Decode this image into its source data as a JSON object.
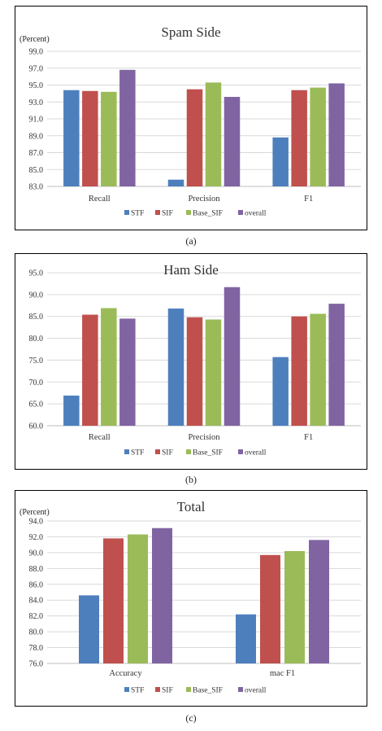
{
  "colors": {
    "series": [
      "#4e7fbd",
      "#c0504d",
      "#9bbb59",
      "#8064a2"
    ],
    "grid": "#d9d9d9",
    "axis": "#bfbfbf",
    "frame": "#000000"
  },
  "captions": [
    "(a)",
    "(b)",
    "(c)"
  ],
  "chart_data": [
    {
      "type": "bar",
      "title": "Spam Side",
      "ylabel": "(Percent)",
      "categories": [
        "Recall",
        "Precision",
        "F1"
      ],
      "ylim": [
        83.0,
        99.0
      ],
      "yticks": [
        "99.0",
        "97.0",
        "95.0",
        "93.0",
        "91.0",
        "89.0",
        "87.0",
        "85.0",
        "83.0"
      ],
      "grid": true,
      "legend_position": "bottom",
      "series": [
        {
          "name": "STF",
          "values": [
            94.4,
            83.8,
            88.8
          ]
        },
        {
          "name": "SIF",
          "values": [
            94.3,
            94.5,
            94.4
          ]
        },
        {
          "name": "Base_SIF",
          "values": [
            94.2,
            95.3,
            94.7
          ]
        },
        {
          "name": "overall",
          "values": [
            96.8,
            93.6,
            95.2
          ]
        }
      ]
    },
    {
      "type": "bar",
      "title": "Ham Side",
      "ylabel": "(Percent)",
      "categories": [
        "Recall",
        "Precision",
        "F1"
      ],
      "ylim": [
        60.0,
        95.0
      ],
      "yticks": [
        "95.0",
        "90.0",
        "85.0",
        "80.0",
        "75.0",
        "70.0",
        "65.0",
        "60.0"
      ],
      "grid": true,
      "legend_position": "bottom",
      "series": [
        {
          "name": "STF",
          "values": [
            66.9,
            86.8,
            75.7
          ]
        },
        {
          "name": "SIF",
          "values": [
            85.4,
            84.8,
            85.0
          ]
        },
        {
          "name": "Base_SIF",
          "values": [
            86.9,
            84.3,
            85.6
          ]
        },
        {
          "name": "overall",
          "values": [
            84.5,
            91.7,
            87.9
          ]
        }
      ]
    },
    {
      "type": "bar",
      "title": "Total",
      "ylabel": "(Percent)",
      "categories": [
        "Accuracy",
        "mac F1"
      ],
      "ylim": [
        76.0,
        94.0
      ],
      "yticks": [
        "94.0",
        "92.0",
        "90.0",
        "88.0",
        "86.0",
        "84.0",
        "82.0",
        "80.0",
        "78.0",
        "76.0"
      ],
      "grid": true,
      "legend_position": "bottom",
      "series": [
        {
          "name": "STF",
          "values": [
            84.6,
            82.2
          ]
        },
        {
          "name": "SIF",
          "values": [
            91.8,
            89.7
          ]
        },
        {
          "name": "Base_SIF",
          "values": [
            92.3,
            90.2
          ]
        },
        {
          "name": "overall",
          "values": [
            93.1,
            91.6
          ]
        }
      ]
    }
  ]
}
